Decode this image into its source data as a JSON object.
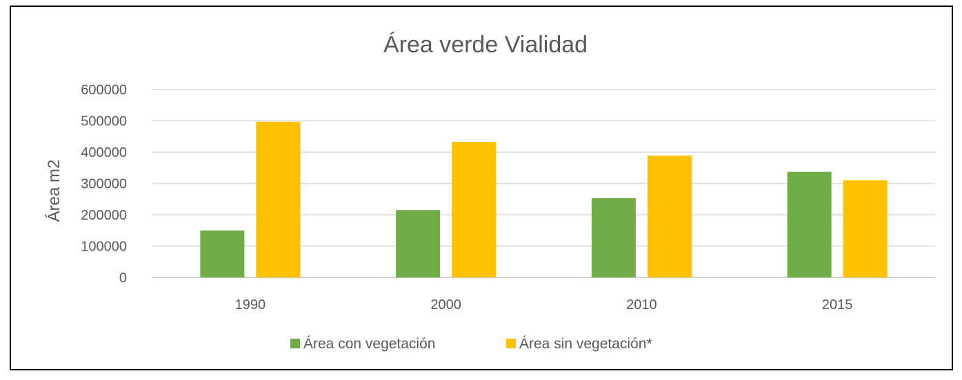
{
  "chart_data": {
    "type": "bar",
    "title": "Área verde Vialidad",
    "xlabel": "",
    "ylabel": "Área m2",
    "categories": [
      "1990",
      "2000",
      "2010",
      "2015"
    ],
    "series": [
      {
        "name": "Área con vegetación",
        "color": "#70AD47",
        "values": [
          150000,
          215000,
          253000,
          337000
        ]
      },
      {
        "name": "Área sin vegetación*",
        "color": "#FFC000",
        "values": [
          497000,
          433000,
          389000,
          310000
        ]
      }
    ],
    "ylim": [
      0,
      600000
    ],
    "yticks": [
      "0",
      "100000",
      "200000",
      "300000",
      "400000",
      "500000",
      "600000"
    ],
    "grid": true,
    "legend_position": "bottom"
  }
}
